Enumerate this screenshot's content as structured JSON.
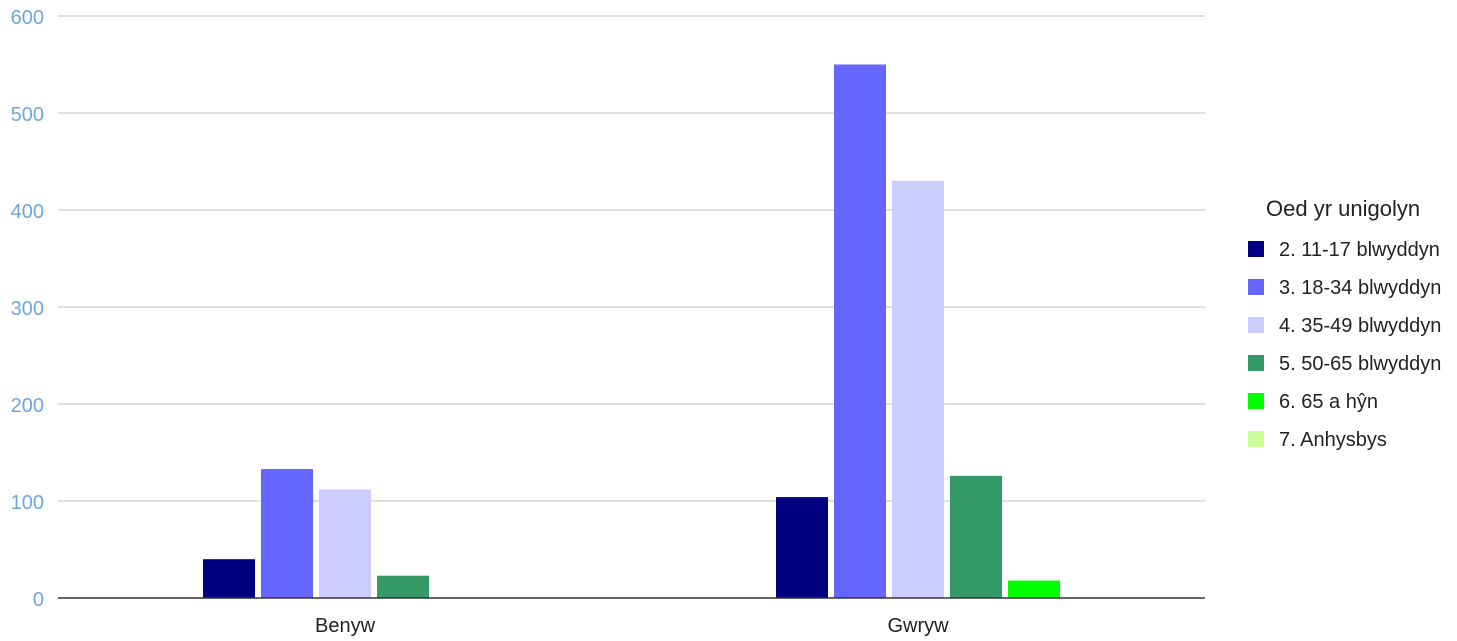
{
  "chart_data": {
    "type": "bar",
    "title": "",
    "xlabel": "",
    "ylabel": "",
    "categories": [
      "Benyw",
      "Gwryw"
    ],
    "ylim": [
      0,
      600
    ],
    "yticks": [
      0,
      100,
      200,
      300,
      400,
      500,
      600
    ],
    "grid": true,
    "legend": {
      "title": "Oed yr unigolyn",
      "placement": "right"
    },
    "series": [
      {
        "name": "2. 11-17 blwyddyn",
        "color": "#000080",
        "values": [
          40,
          104
        ]
      },
      {
        "name": "3. 18-34 blwyddyn",
        "color": "#6666ff",
        "values": [
          133,
          550
        ]
      },
      {
        "name": "4. 35-49 blwyddyn",
        "color": "#ccccff",
        "values": [
          112,
          430
        ]
      },
      {
        "name": "5. 50-65 blwyddyn",
        "color": "#339966",
        "values": [
          23,
          126
        ]
      },
      {
        "name": "6. 65 a hŷn",
        "color": "#00ff00",
        "values": [
          0,
          18
        ]
      },
      {
        "name": "7. Anhysbys",
        "color": "#ccff99",
        "values": [
          0,
          0
        ]
      }
    ]
  },
  "colors": {
    "tick_label": "#6fa8dc",
    "category_label": "#222222",
    "legend_text": "#222222",
    "gridline": "#cccccc",
    "baseline": "#333333"
  }
}
